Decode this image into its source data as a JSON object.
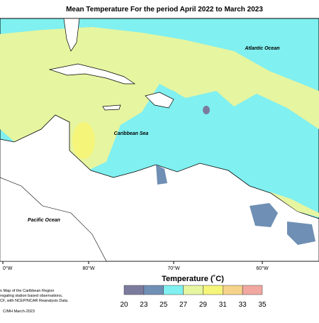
{
  "title": "Mean Temperature For the period April 2022 to March 2023",
  "labels": {
    "atlantic": "Atlantic Ocean",
    "caribbean": "Caribbean Sea",
    "pacific": "Pacific Ocean"
  },
  "longitude_labels": [
    "0°W",
    "80°W",
    "70°W",
    "60°W"
  ],
  "legend": {
    "title": "Temperature (˚C)",
    "ticks": [
      20,
      23,
      25,
      27,
      29,
      31,
      33,
      35
    ],
    "colors": [
      "#7b7b9e",
      "#6f8fb4",
      "#80f0f0",
      "#e6f5a0",
      "#f5f57a",
      "#f5d38a",
      "#f0a8a0"
    ]
  },
  "footnote": [
    "n Map of the Caribbean Region",
    "regating station based observations,",
    "CF, with NCEP/NCAR Reanalysis Data.",
    "C/MH March-2023"
  ]
}
